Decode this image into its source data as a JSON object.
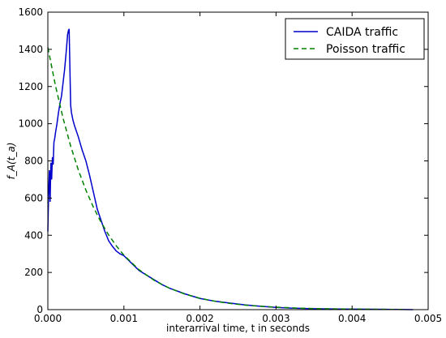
{
  "chart_data": {
    "type": "line",
    "title": "",
    "xlabel": "interarrival time, t in seconds",
    "ylabel": "f_A(t_a)",
    "xlim": [
      0,
      0.005
    ],
    "ylim": [
      0,
      1600
    ],
    "xticks": [
      "0.000",
      "0.001",
      "0.002",
      "0.003",
      "0.004",
      "0.005"
    ],
    "yticks": [
      "0",
      "200",
      "400",
      "600",
      "800",
      "1000",
      "1200",
      "1400",
      "1600"
    ],
    "grid": false,
    "legend_position": "top-right",
    "series": [
      {
        "name": "CAIDA traffic",
        "color": "#0000cc",
        "style": "solid",
        "x": [
          0.0,
          1e-05,
          2e-05,
          3e-05,
          4e-05,
          5e-05,
          6e-05,
          7e-05,
          8e-05,
          9e-05,
          0.0001,
          0.00012,
          0.00014,
          0.00016,
          0.00018,
          0.0002,
          0.00022,
          0.00024,
          0.00026,
          0.00027,
          0.00028,
          0.00029,
          0.0003,
          0.00031,
          0.00033,
          0.00035,
          0.0004,
          0.00045,
          0.0005,
          0.00055,
          0.0006,
          0.00065,
          0.0007,
          0.00075,
          0.0008,
          0.00085,
          0.0009,
          0.00095,
          0.001,
          0.0011,
          0.0012,
          0.0013,
          0.0014,
          0.0015,
          0.0016,
          0.0018,
          0.002,
          0.0022,
          0.0024,
          0.0026,
          0.0028,
          0.003,
          0.0032,
          0.0035,
          0.0038,
          0.0042,
          0.0046,
          0.0048
        ],
        "y": [
          420,
          620,
          750,
          580,
          790,
          700,
          820,
          780,
          900,
          920,
          950,
          1000,
          1060,
          1110,
          1150,
          1220,
          1290,
          1380,
          1480,
          1500,
          1510,
          1300,
          1100,
          1060,
          1020,
          990,
          930,
          860,
          800,
          720,
          630,
          540,
          480,
          420,
          370,
          340,
          315,
          300,
          290,
          250,
          210,
          185,
          160,
          135,
          115,
          85,
          60,
          45,
          35,
          25,
          18,
          12,
          8,
          5,
          3,
          2,
          1,
          0
        ]
      },
      {
        "name": "Poisson traffic",
        "color": "#008000",
        "style": "dashed",
        "x": [
          0.0,
          0.0001,
          0.0002,
          0.0003,
          0.0004,
          0.0005,
          0.0006,
          0.0007,
          0.0008,
          0.0009,
          0.001,
          0.0012,
          0.0014,
          0.0016,
          0.0018,
          0.002,
          0.0022,
          0.0024,
          0.0026,
          0.0028,
          0.003,
          0.0033,
          0.0036,
          0.004,
          0.0044,
          0.0047
        ],
        "y": [
          1410,
          1205,
          1030,
          880,
          752,
          643,
          550,
          470,
          401,
          343,
          293,
          214,
          157,
          115,
          84,
          61,
          45,
          33,
          24,
          18,
          13,
          8,
          5,
          3,
          1.5,
          1
        ]
      }
    ]
  }
}
